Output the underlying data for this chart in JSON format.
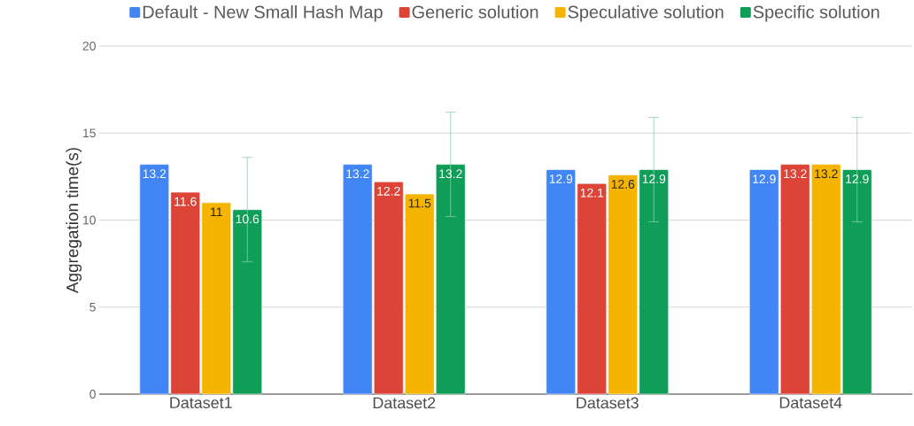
{
  "chart_data": {
    "type": "bar",
    "ylabel": "Aggregation time(s)",
    "categories": [
      "Dataset1",
      "Dataset2",
      "Dataset3",
      "Dataset4"
    ],
    "series": [
      {
        "name": "Default - New Small Hash Map",
        "color": "#4285f4",
        "values": [
          13.2,
          13.2,
          12.9,
          12.9
        ]
      },
      {
        "name": "Generic solution",
        "color": "#db4437",
        "values": [
          11.6,
          12.2,
          12.1,
          13.2
        ]
      },
      {
        "name": "Speculative solution",
        "color": "#f4b400",
        "values": [
          11,
          11.5,
          12.6,
          13.2
        ]
      },
      {
        "name": "Specific solution",
        "color": "#0f9d58",
        "values": [
          10.6,
          13.2,
          12.9,
          12.9
        ],
        "errors": [
          3,
          3,
          3,
          3
        ]
      }
    ],
    "ylim": [
      0,
      20
    ],
    "yticks": [
      0,
      5,
      10,
      15,
      20
    ],
    "grid": "y",
    "legend": "top",
    "data_labels": true
  }
}
